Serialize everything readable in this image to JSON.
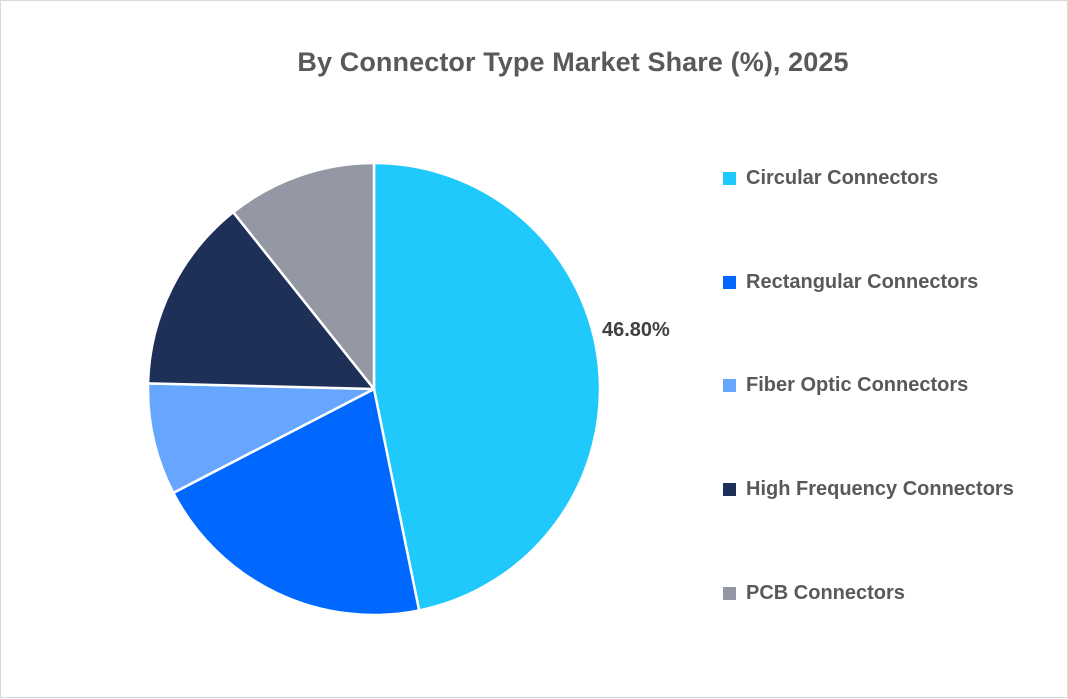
{
  "chart": {
    "title": "By Connector Type Market Share (%), 2025",
    "data_label": "46.80%"
  },
  "legend": [
    {
      "label": "Circular Connectors",
      "color": "#1fc9fc"
    },
    {
      "label": "Rectangular Connectors",
      "color": "#0068ff"
    },
    {
      "label": "Fiber Optic Connectors",
      "color": "#66a6ff"
    },
    {
      "label": "High Frequency Connectors",
      "color": "#1e3057"
    },
    {
      "label": "PCB Connectors",
      "color": "#9398a4"
    }
  ],
  "chart_data": {
    "type": "pie",
    "title": "By Connector Type Market Share (%), 2025",
    "categories": [
      "Circular Connectors",
      "Rectangular Connectors",
      "Fiber Optic Connectors",
      "High Frequency Connectors",
      "PCB Connectors"
    ],
    "values": [
      46.8,
      20.6,
      8.0,
      13.9,
      10.7
    ],
    "colors": [
      "#1fc9fc",
      "#0068ff",
      "#66a6ff",
      "#1e3057",
      "#9398a4"
    ],
    "data_labels": {
      "Circular Connectors": "46.80%"
    },
    "start_angle": "12 o'clock, clockwise",
    "legend_position": "right"
  }
}
